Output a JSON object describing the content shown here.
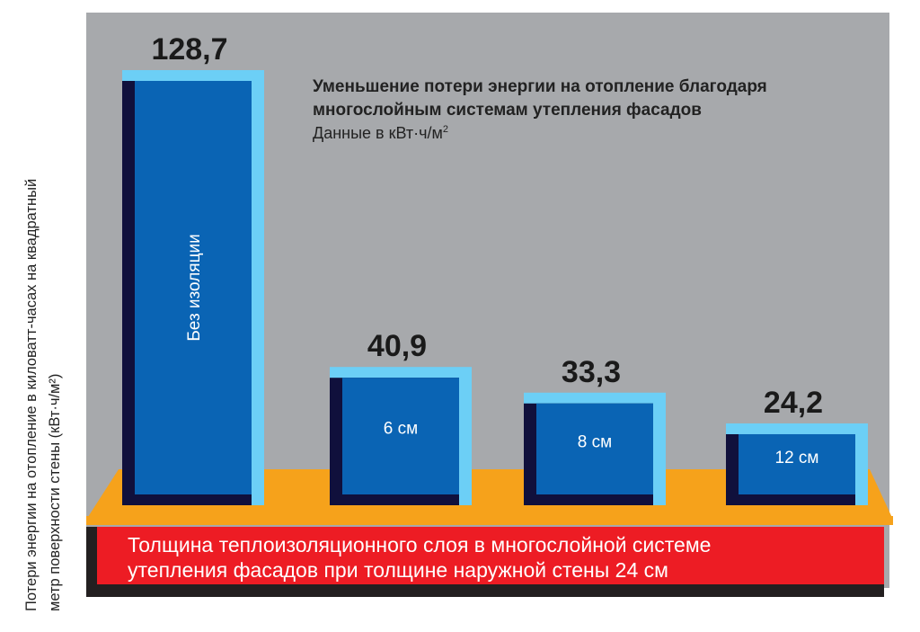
{
  "chart_data": {
    "type": "bar",
    "title": "Уменьшение потери энергии на отопление благодаря многослойным системам утепления фасадов",
    "title_lines": [
      "Уменьшение потери энергии на отопление благодаря",
      "многослойным системам утепления фасадов"
    ],
    "subtitle": "Данные в кВт·ч/м²",
    "subtitle_base": "Данные в кВт·ч/м",
    "subtitle_sup": "2",
    "ylabel": "Потери энергии на отопление в киловатт-часах на квадратный метр поверхности стены (кВт·ч/м²)",
    "ylabel_lines": [
      "Потери энергии на отопление в киловатт-часах на квадратный",
      "метр поверхности стены (кВт·ч/м²)"
    ],
    "xlabel": "Толщина теплоизоляционного слоя в многослойной системе утепления фасадов при толщине наружной стены 24 см",
    "xlabel_lines": [
      "Толщина теплоизоляционного слоя в многослойной системе",
      "утепления фасадов при толщине наружной стены 24 см"
    ],
    "categories": [
      "Без изоляции",
      "6 см",
      "8 см",
      "12 см"
    ],
    "values": [
      128.7,
      40.9,
      33.3,
      24.2
    ],
    "value_labels": [
      "128,7",
      "40,9",
      "33,3",
      "24,2"
    ],
    "ylim": [
      0,
      140
    ],
    "grid": false,
    "legend": "none",
    "colors": {
      "background_panel": "#a7a9ac",
      "bar_front": "#0a64b4",
      "bar_top_edge": "#6ccff6",
      "bar_shadow": "#10103c",
      "platform": "#f6a21b",
      "banner": "#ed1c24",
      "banner_text": "#ffffff",
      "value_text": "#1a1a1a"
    }
  }
}
